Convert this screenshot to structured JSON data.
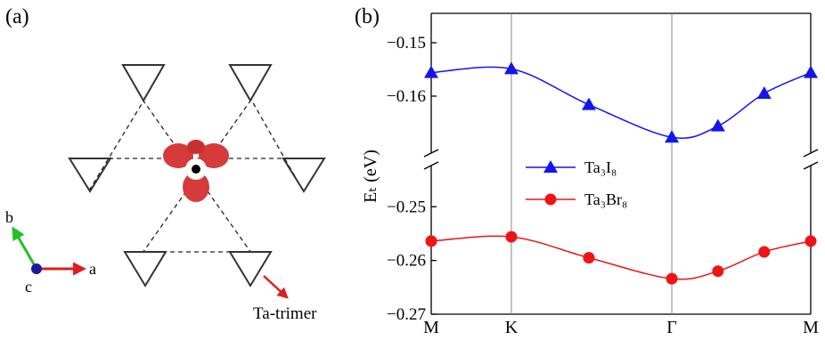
{
  "diagram": {
    "panel_label": "(a)",
    "axis_b": "b",
    "axis_a": "a",
    "axis_c": "c",
    "pointer_label": "Ta-trimer"
  },
  "chart_data": {
    "type": "line",
    "panel_label": "(b)",
    "y_label": "Eₜ (eV)",
    "xlim": [
      0,
      2.732
    ],
    "xticks": [
      {
        "value": 0,
        "label": "M"
      },
      {
        "value": 0.577,
        "label": "K"
      },
      {
        "value": 1.732,
        "label": "Γ"
      },
      {
        "value": 2.732,
        "label": "M"
      }
    ],
    "axes": {
      "upper": {
        "ylim": [
          -0.17,
          -0.1445
        ],
        "yticks": [
          {
            "value": -0.15,
            "label": "−0.15"
          },
          {
            "value": -0.16,
            "label": "−0.16"
          }
        ]
      },
      "lower": {
        "ylim": [
          -0.27,
          -0.243
        ],
        "yticks": [
          {
            "value": -0.25,
            "label": "−0.25"
          },
          {
            "value": -0.26,
            "label": "−0.26"
          },
          {
            "value": -0.27,
            "label": "−0.27"
          }
        ]
      }
    },
    "x": [
      0,
      0.577,
      1.135,
      1.732,
      2.064,
      2.397,
      2.732
    ],
    "series": [
      {
        "name": "Ta₃I₈",
        "color": "#1414ee",
        "marker": "triangle",
        "axis": "upper",
        "values": [
          -0.1556,
          -0.1549,
          -0.1616,
          -0.1677,
          -0.1656,
          -0.1595,
          -0.1556
        ]
      },
      {
        "name": "Ta₃Br₈",
        "color": "#ee1414",
        "marker": "circle",
        "axis": "lower",
        "values": [
          -0.2564,
          -0.2556,
          -0.2595,
          -0.2634,
          -0.262,
          -0.2584,
          -0.2564
        ]
      }
    ]
  }
}
